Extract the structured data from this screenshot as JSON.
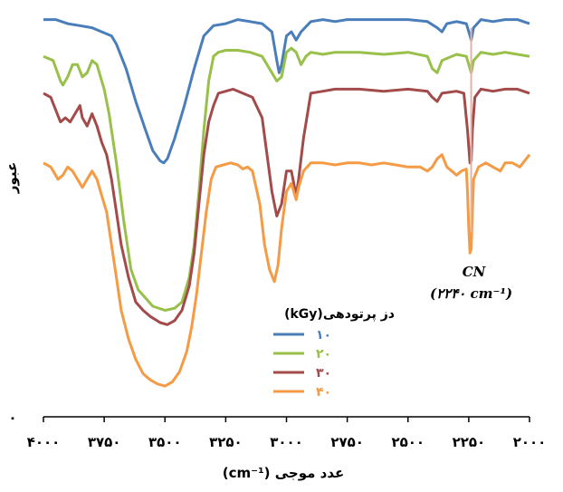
{
  "chart_data": {
    "type": "line",
    "xlabel": "عدد موجی (cm⁻¹)",
    "ylabel": "عبور",
    "y_origin_label": "۰",
    "xlim": [
      4000,
      2000
    ],
    "x_reversed": true,
    "ylim": [
      0,
      100
    ],
    "grid": false,
    "x_ticks": [
      4000,
      3750,
      3500,
      3250,
      3000,
      2750,
      2500,
      2250,
      2000
    ],
    "x_tick_labels": [
      "۴۰۰۰",
      "۳۷۵۰",
      "۳۵۰۰",
      "۳۲۵۰",
      "۳۰۰۰",
      "۲۷۵۰",
      "۲۵۰۰",
      "۲۲۵۰",
      "۲۰۰۰"
    ],
    "legend": {
      "title": "دز پرتودهی(kGy)",
      "placement": "center"
    },
    "annotation": {
      "line1": "CN",
      "line2": "(۲۲۴۰ cm⁻¹)",
      "x": 2240
    },
    "series": [
      {
        "name": "۱۰",
        "color": "#4a7ebb",
        "points": [
          [
            4000,
            97
          ],
          [
            3950,
            97
          ],
          [
            3900,
            96
          ],
          [
            3850,
            95.5
          ],
          [
            3800,
            95
          ],
          [
            3760,
            94
          ],
          [
            3720,
            93
          ],
          [
            3700,
            91
          ],
          [
            3660,
            85
          ],
          [
            3620,
            77
          ],
          [
            3580,
            70
          ],
          [
            3550,
            65
          ],
          [
            3520,
            62.5
          ],
          [
            3505,
            62
          ],
          [
            3490,
            63
          ],
          [
            3460,
            68
          ],
          [
            3420,
            76
          ],
          [
            3380,
            85
          ],
          [
            3340,
            93
          ],
          [
            3300,
            95.5
          ],
          [
            3250,
            96
          ],
          [
            3200,
            97
          ],
          [
            3150,
            96.5
          ],
          [
            3100,
            96
          ],
          [
            3060,
            94
          ],
          [
            3040,
            87
          ],
          [
            3030,
            84
          ],
          [
            3020,
            86
          ],
          [
            3000,
            93
          ],
          [
            2980,
            94
          ],
          [
            2960,
            92
          ],
          [
            2940,
            94
          ],
          [
            2900,
            96.5
          ],
          [
            2850,
            97
          ],
          [
            2800,
            96.5
          ],
          [
            2750,
            97
          ],
          [
            2700,
            97
          ],
          [
            2600,
            97
          ],
          [
            2500,
            97
          ],
          [
            2420,
            96.5
          ],
          [
            2380,
            95
          ],
          [
            2360,
            94
          ],
          [
            2340,
            96
          ],
          [
            2300,
            96.5
          ],
          [
            2260,
            96
          ],
          [
            2250,
            94
          ],
          [
            2240,
            92
          ],
          [
            2230,
            95
          ],
          [
            2200,
            97
          ],
          [
            2150,
            96.5
          ],
          [
            2100,
            97
          ],
          [
            2050,
            97
          ],
          [
            2000,
            96
          ]
        ]
      },
      {
        "name": "۲۰",
        "color": "#98c04a",
        "points": [
          [
            4000,
            88
          ],
          [
            3960,
            87
          ],
          [
            3930,
            82
          ],
          [
            3920,
            81
          ],
          [
            3900,
            83
          ],
          [
            3880,
            86
          ],
          [
            3860,
            86
          ],
          [
            3840,
            83
          ],
          [
            3820,
            84
          ],
          [
            3800,
            87
          ],
          [
            3780,
            86
          ],
          [
            3760,
            82
          ],
          [
            3750,
            80
          ],
          [
            3730,
            74
          ],
          [
            3700,
            62
          ],
          [
            3670,
            48
          ],
          [
            3640,
            36
          ],
          [
            3610,
            31
          ],
          [
            3580,
            29
          ],
          [
            3550,
            27
          ],
          [
            3500,
            26
          ],
          [
            3460,
            26.5
          ],
          [
            3430,
            28
          ],
          [
            3400,
            34
          ],
          [
            3380,
            42
          ],
          [
            3360,
            55
          ],
          [
            3340,
            70
          ],
          [
            3320,
            82
          ],
          [
            3300,
            88
          ],
          [
            3280,
            89
          ],
          [
            3250,
            89.5
          ],
          [
            3200,
            89.5
          ],
          [
            3150,
            89
          ],
          [
            3100,
            88
          ],
          [
            3070,
            85
          ],
          [
            3050,
            83
          ],
          [
            3040,
            82
          ],
          [
            3020,
            83
          ],
          [
            3000,
            89
          ],
          [
            2980,
            90
          ],
          [
            2960,
            89
          ],
          [
            2940,
            86
          ],
          [
            2920,
            88
          ],
          [
            2900,
            89
          ],
          [
            2850,
            88.5
          ],
          [
            2800,
            89
          ],
          [
            2700,
            89
          ],
          [
            2600,
            88.5
          ],
          [
            2500,
            89
          ],
          [
            2420,
            88
          ],
          [
            2400,
            85
          ],
          [
            2380,
            84
          ],
          [
            2360,
            87
          ],
          [
            2300,
            88.5
          ],
          [
            2260,
            88
          ],
          [
            2250,
            86
          ],
          [
            2240,
            84
          ],
          [
            2230,
            87
          ],
          [
            2200,
            89
          ],
          [
            2150,
            88.5
          ],
          [
            2100,
            89
          ],
          [
            2050,
            88.5
          ],
          [
            2000,
            88
          ]
        ]
      },
      {
        "name": "۳۰",
        "color": "#a24b4a",
        "points": [
          [
            4000,
            79
          ],
          [
            3970,
            78
          ],
          [
            3950,
            75
          ],
          [
            3930,
            72
          ],
          [
            3910,
            73
          ],
          [
            3890,
            72
          ],
          [
            3870,
            74
          ],
          [
            3850,
            76
          ],
          [
            3840,
            73
          ],
          [
            3820,
            71
          ],
          [
            3800,
            74
          ],
          [
            3780,
            71
          ],
          [
            3760,
            67
          ],
          [
            3740,
            64
          ],
          [
            3720,
            58
          ],
          [
            3700,
            50
          ],
          [
            3680,
            42
          ],
          [
            3650,
            34
          ],
          [
            3620,
            28
          ],
          [
            3590,
            26
          ],
          [
            3560,
            24.5
          ],
          [
            3520,
            23
          ],
          [
            3490,
            22.5
          ],
          [
            3460,
            23.5
          ],
          [
            3430,
            26
          ],
          [
            3400,
            32
          ],
          [
            3380,
            40
          ],
          [
            3360,
            52
          ],
          [
            3340,
            64
          ],
          [
            3320,
            72
          ],
          [
            3300,
            76
          ],
          [
            3280,
            79
          ],
          [
            3250,
            79.5
          ],
          [
            3220,
            80
          ],
          [
            3180,
            79
          ],
          [
            3140,
            78
          ],
          [
            3100,
            73
          ],
          [
            3080,
            64
          ],
          [
            3060,
            55
          ],
          [
            3040,
            49
          ],
          [
            3020,
            52
          ],
          [
            3000,
            60
          ],
          [
            2980,
            60
          ],
          [
            2960,
            54
          ],
          [
            2950,
            58
          ],
          [
            2930,
            68
          ],
          [
            2900,
            79
          ],
          [
            2850,
            79.5
          ],
          [
            2800,
            80
          ],
          [
            2700,
            80
          ],
          [
            2600,
            79.5
          ],
          [
            2500,
            80
          ],
          [
            2420,
            79.5
          ],
          [
            2400,
            78
          ],
          [
            2380,
            77
          ],
          [
            2360,
            79
          ],
          [
            2300,
            79.5
          ],
          [
            2270,
            79
          ],
          [
            2255,
            70
          ],
          [
            2245,
            62
          ],
          [
            2240,
            62.5
          ],
          [
            2235,
            70
          ],
          [
            2225,
            78
          ],
          [
            2200,
            80
          ],
          [
            2150,
            79.5
          ],
          [
            2100,
            80
          ],
          [
            2050,
            80
          ],
          [
            2000,
            79
          ]
        ]
      },
      {
        "name": "۴۰",
        "color": "#f59a45",
        "points": [
          [
            4000,
            62
          ],
          [
            3970,
            61
          ],
          [
            3940,
            58
          ],
          [
            3920,
            59
          ],
          [
            3900,
            61
          ],
          [
            3880,
            60
          ],
          [
            3860,
            58
          ],
          [
            3840,
            56
          ],
          [
            3820,
            58
          ],
          [
            3800,
            60
          ],
          [
            3780,
            58
          ],
          [
            3760,
            54
          ],
          [
            3740,
            50
          ],
          [
            3720,
            42
          ],
          [
            3700,
            34
          ],
          [
            3680,
            26
          ],
          [
            3650,
            19
          ],
          [
            3620,
            14
          ],
          [
            3590,
            10.5
          ],
          [
            3560,
            9
          ],
          [
            3530,
            8
          ],
          [
            3500,
            7.5
          ],
          [
            3470,
            8.5
          ],
          [
            3440,
            11
          ],
          [
            3410,
            16
          ],
          [
            3390,
            22
          ],
          [
            3370,
            30
          ],
          [
            3350,
            40
          ],
          [
            3330,
            50
          ],
          [
            3310,
            58
          ],
          [
            3290,
            61
          ],
          [
            3260,
            61.5
          ],
          [
            3230,
            62
          ],
          [
            3200,
            61.5
          ],
          [
            3180,
            60.5
          ],
          [
            3160,
            61
          ],
          [
            3140,
            60
          ],
          [
            3110,
            52
          ],
          [
            3090,
            42
          ],
          [
            3070,
            36
          ],
          [
            3050,
            33
          ],
          [
            3035,
            37
          ],
          [
            3020,
            46
          ],
          [
            3000,
            55
          ],
          [
            2980,
            57
          ],
          [
            2960,
            53
          ],
          [
            2950,
            56
          ],
          [
            2930,
            60
          ],
          [
            2900,
            62
          ],
          [
            2850,
            62
          ],
          [
            2800,
            61.5
          ],
          [
            2750,
            62
          ],
          [
            2700,
            62
          ],
          [
            2650,
            61.5
          ],
          [
            2600,
            62
          ],
          [
            2550,
            61.5
          ],
          [
            2500,
            61
          ],
          [
            2450,
            61
          ],
          [
            2420,
            60
          ],
          [
            2400,
            61
          ],
          [
            2380,
            63
          ],
          [
            2360,
            64
          ],
          [
            2340,
            61
          ],
          [
            2320,
            60
          ],
          [
            2300,
            59
          ],
          [
            2280,
            60
          ],
          [
            2260,
            60.5
          ],
          [
            2255,
            55
          ],
          [
            2250,
            46
          ],
          [
            2245,
            40
          ],
          [
            2240,
            41
          ],
          [
            2235,
            50
          ],
          [
            2230,
            58
          ],
          [
            2210,
            61
          ],
          [
            2180,
            62
          ],
          [
            2150,
            61
          ],
          [
            2120,
            60
          ],
          [
            2100,
            62
          ],
          [
            2070,
            62
          ],
          [
            2040,
            61
          ],
          [
            2000,
            64
          ]
        ]
      }
    ]
  }
}
